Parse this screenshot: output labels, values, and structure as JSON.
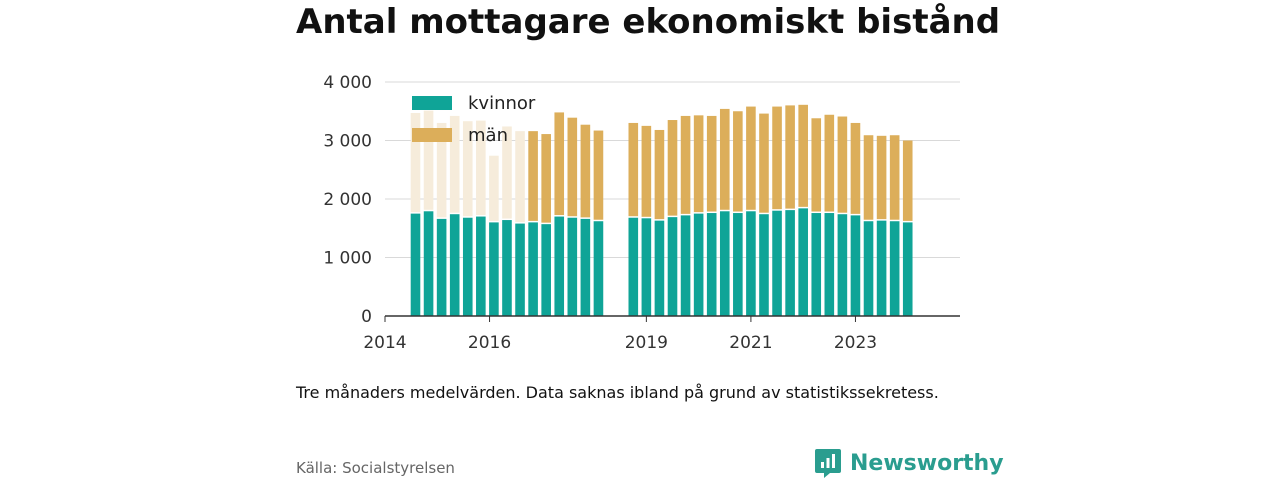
{
  "title": "Antal mottagare ekonomiskt bistånd",
  "note": "Tre månaders medelvärden. Data saknas ibland på grund av statistikssekretess.",
  "source": "Källa: Socialstyrelsen",
  "brand": {
    "name": "Newsworthy",
    "icon": "newsworthy-logo-icon"
  },
  "colors": {
    "kvinnor": "#0fa497",
    "man": "#dcae5a",
    "man_faded": "#f6ecdb",
    "grid": "#d9d9d9",
    "axis": "#333333"
  },
  "chart_data": {
    "type": "bar",
    "stacked": true,
    "y_ticks": [
      "0",
      "1 000",
      "2 000",
      "3 000",
      "4 000"
    ],
    "ylim": [
      0,
      4000
    ],
    "xlim": [
      "2014-01",
      "2024-12"
    ],
    "x_ticks": [
      "2014",
      "2016",
      "2019",
      "2021",
      "2023"
    ],
    "grid": true,
    "legend_position": "top-left",
    "series": [
      {
        "name": "kvinnor",
        "values": [
          1750,
          1790,
          1660,
          1740,
          1680,
          1700,
          1600,
          1640,
          1580,
          1600,
          1570,
          1700,
          1680,
          1660,
          1620,
          1680,
          1670,
          1630,
          1690,
          1720,
          1750,
          1760,
          1790,
          1760,
          1790,
          1740,
          1800,
          1810,
          1840,
          1760,
          1760,
          1740,
          1720,
          1620,
          1630,
          1620,
          1600
        ]
      },
      {
        "name": "män",
        "values": [
          1720,
          1720,
          1640,
          1680,
          1650,
          1640,
          1140,
          1600,
          1580,
          1560,
          1540,
          1780,
          1710,
          1610,
          1550,
          1620,
          1580,
          1550,
          1660,
          1700,
          1680,
          1660,
          1750,
          1740,
          1790,
          1720,
          1780,
          1790,
          1770,
          1620,
          1680,
          1670,
          1580,
          1470,
          1450,
          1470,
          1400
        ],
        "faded_indices": [
          0,
          1,
          2,
          3,
          4,
          5,
          6,
          7,
          8
        ]
      }
    ],
    "x": [
      "2014-08",
      "2014-11",
      "2015-02",
      "2015-05",
      "2015-08",
      "2015-11",
      "2016-02",
      "2016-05",
      "2016-08",
      "2016-11",
      "2017-02",
      "2017-05",
      "2017-08",
      "2017-11",
      "2018-02",
      "2018-10",
      "2019-01",
      "2019-04",
      "2019-07",
      "2019-10",
      "2020-01",
      "2020-04",
      "2020-07",
      "2020-10",
      "2021-01",
      "2021-04",
      "2021-07",
      "2021-10",
      "2022-01",
      "2022-04",
      "2022-07",
      "2022-10",
      "2023-01",
      "2023-04",
      "2023-07",
      "2023-10",
      "2024-01"
    ]
  }
}
